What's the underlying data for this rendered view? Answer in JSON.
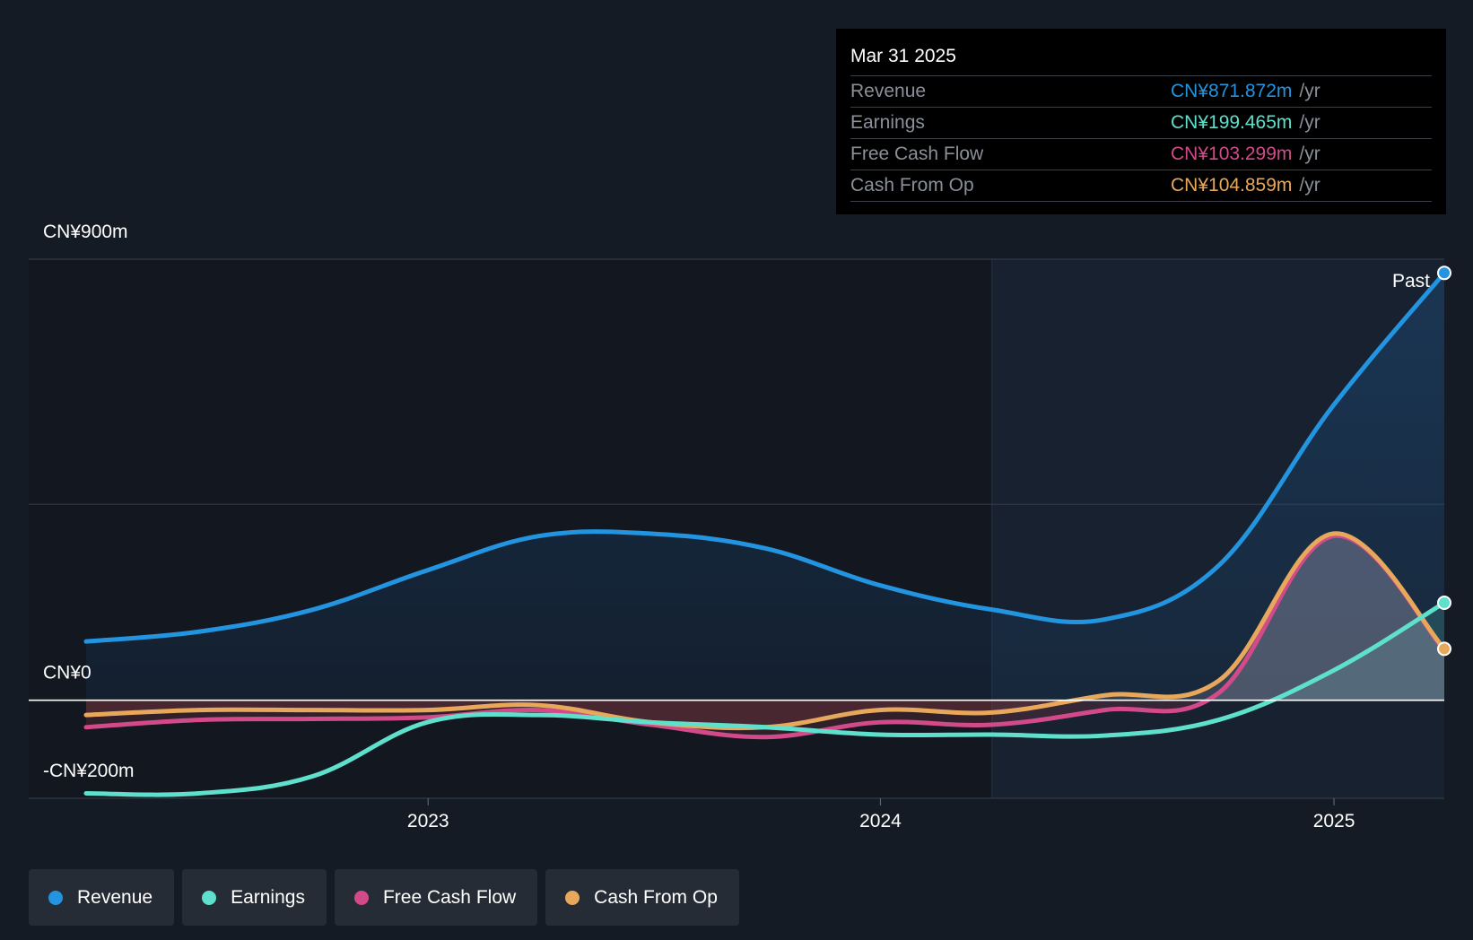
{
  "tooltip": {
    "date": "Mar 31 2025",
    "rows": [
      {
        "label": "Revenue",
        "value": "CN¥871.872m",
        "unit": "/yr",
        "color": "#2394df"
      },
      {
        "label": "Earnings",
        "value": "CN¥199.465m",
        "unit": "/yr",
        "color": "#5ee0cc"
      },
      {
        "label": "Free Cash Flow",
        "value": "CN¥103.299m",
        "unit": "/yr",
        "color": "#d24a8a"
      },
      {
        "label": "Cash From Op",
        "value": "CN¥104.859m",
        "unit": "/yr",
        "color": "#e8a85c"
      }
    ]
  },
  "legend": [
    {
      "label": "Revenue",
      "color": "#2394df"
    },
    {
      "label": "Earnings",
      "color": "#5ee0cc"
    },
    {
      "label": "Free Cash Flow",
      "color": "#d24a8a"
    },
    {
      "label": "Cash From Op",
      "color": "#e8a85c"
    }
  ],
  "chart_data": {
    "type": "line",
    "y_unit": "CN¥m",
    "ylim": [
      -200,
      900
    ],
    "y_tick_labels": [
      {
        "value": 900,
        "label": "CN¥900m"
      },
      {
        "value": 0,
        "label": "CN¥0"
      },
      {
        "value": -200,
        "label": "-CN¥200m"
      }
    ],
    "x_ticks": [
      "2023",
      "2024",
      "2025"
    ],
    "x_range": [
      "2022-03-31",
      "2025-03-31"
    ],
    "past_label": "Past",
    "forecast_start": "2024-03-31",
    "grid": true,
    "series": [
      {
        "name": "Revenue",
        "color": "#2394df",
        "x": [
          "2022-03-31",
          "2022-06-30",
          "2022-09-30",
          "2022-12-31",
          "2023-03-31",
          "2023-06-30",
          "2023-09-30",
          "2023-12-31",
          "2024-03-31",
          "2024-06-30",
          "2024-09-30",
          "2024-12-31",
          "2025-03-31"
        ],
        "y": [
          120,
          140,
          185,
          265,
          335,
          340,
          310,
          235,
          185,
          165,
          275,
          600,
          872
        ]
      },
      {
        "name": "Earnings",
        "color": "#5ee0cc",
        "x": [
          "2022-03-31",
          "2022-06-30",
          "2022-09-30",
          "2022-12-31",
          "2023-03-31",
          "2023-06-30",
          "2023-09-30",
          "2023-12-31",
          "2024-03-31",
          "2024-06-30",
          "2024-09-30",
          "2024-12-31",
          "2025-03-31"
        ],
        "y": [
          -190,
          -190,
          -155,
          -45,
          -30,
          -45,
          -55,
          -70,
          -70,
          -72,
          -40,
          60,
          199
        ]
      },
      {
        "name": "Free Cash Flow",
        "color": "#d24a8a",
        "x": [
          "2022-03-31",
          "2022-06-30",
          "2022-09-30",
          "2022-12-31",
          "2023-03-31",
          "2023-06-30",
          "2023-09-30",
          "2023-12-31",
          "2024-03-31",
          "2024-06-30",
          "2024-09-30",
          "2024-12-31",
          "2025-03-31"
        ],
        "y": [
          -55,
          -40,
          -38,
          -35,
          -20,
          -50,
          -75,
          -45,
          -50,
          -20,
          15,
          335,
          103
        ]
      },
      {
        "name": "Cash From Op",
        "color": "#e8a85c",
        "x": [
          "2022-03-31",
          "2022-06-30",
          "2022-09-30",
          "2022-12-31",
          "2023-03-31",
          "2023-06-30",
          "2023-09-30",
          "2023-12-31",
          "2024-03-31",
          "2024-06-30",
          "2024-09-30",
          "2024-12-31",
          "2025-03-31"
        ],
        "y": [
          -30,
          -20,
          -20,
          -20,
          -10,
          -45,
          -55,
          -20,
          -25,
          10,
          40,
          340,
          105
        ]
      }
    ]
  }
}
